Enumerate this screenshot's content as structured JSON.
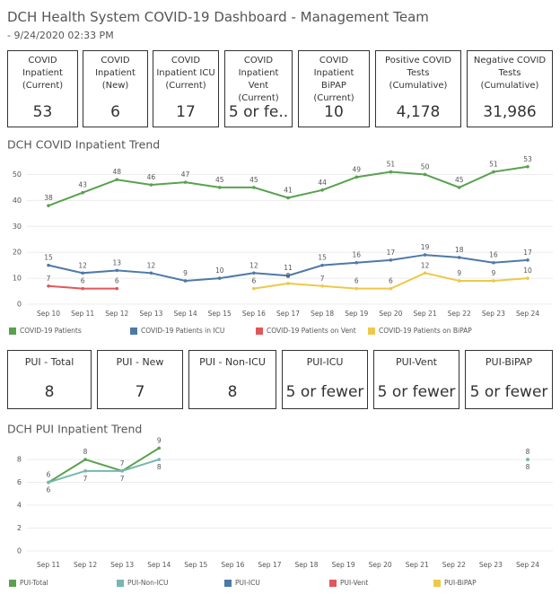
{
  "header": {
    "title": "DCH Health System COVID-19 Dashboard - Management Team",
    "timestamp": " - 9/24/2020 02:33 PM"
  },
  "kpis": [
    {
      "label": "COVID Inpatient (Current)",
      "value": "53"
    },
    {
      "label": "COVID Inpatient (New)",
      "value": "6"
    },
    {
      "label": "COVID Inpatient ICU (Current)",
      "value": "17"
    },
    {
      "label": "COVID Inpatient Vent (Current)",
      "value": "5 or fe.."
    },
    {
      "label": "COVID Inpatient BiPAP (Current)",
      "value": "10"
    },
    {
      "label": "Positive COVID Tests (Cumulative)",
      "value": "4,178"
    },
    {
      "label": "Negative COVID Tests (Cumulative)",
      "value": "31,986"
    }
  ],
  "pui_kpis": [
    {
      "label": "PUI - Total",
      "value": "8"
    },
    {
      "label": "PUI - New",
      "value": "7"
    },
    {
      "label": "PUI - Non-ICU",
      "value": "8"
    },
    {
      "label": "PUI-ICU",
      "value": "5 or fewer"
    },
    {
      "label": "PUI-Vent",
      "value": "5 or fewer"
    },
    {
      "label": "PUI-BiPAP",
      "value": "5 or fewer"
    }
  ],
  "chart_data": [
    {
      "type": "line",
      "title": "DCH COVID Inpatient Trend",
      "categories": [
        "Sep 10",
        "Sep 11",
        "Sep 12",
        "Sep 13",
        "Sep 14",
        "Sep 15",
        "Sep 16",
        "Sep 17",
        "Sep 18",
        "Sep 19",
        "Sep 20",
        "Sep 21",
        "Sep 22",
        "Sep 23",
        "Sep 24"
      ],
      "ylim": [
        0,
        55
      ],
      "yticks": [
        0,
        10,
        20,
        30,
        40,
        50
      ],
      "grid": true,
      "series": [
        {
          "name": "COVID-19 Patients",
          "color": "#59a14f",
          "values": [
            38,
            43,
            48,
            46,
            47,
            45,
            45,
            41,
            44,
            49,
            51,
            50,
            45,
            51,
            53
          ]
        },
        {
          "name": "COVID-19 Patients in ICU",
          "color": "#4e79a7",
          "values": [
            15,
            12,
            13,
            12,
            9,
            10,
            12,
            11,
            15,
            16,
            17,
            19,
            18,
            16,
            17
          ]
        },
        {
          "name": "COVID-19 Patients on Vent",
          "color": "#e15759",
          "values": [
            7,
            6,
            6,
            null,
            null,
            null,
            null,
            null,
            null,
            null,
            null,
            null,
            null,
            null,
            null
          ]
        },
        {
          "name": "COVID-19 Patients on BiPAP",
          "color": "#edc948",
          "values": [
            null,
            null,
            null,
            null,
            null,
            null,
            6,
            8,
            7,
            6,
            6,
            12,
            9,
            9,
            10
          ]
        }
      ]
    },
    {
      "type": "line",
      "title": "DCH PUI Inpatient Trend",
      "categories": [
        "Sep 11",
        "Sep 12",
        "Sep 13",
        "Sep 14",
        "Sep 15",
        "Sep 16",
        "Sep 17",
        "Sep 18",
        "Sep 19",
        "Sep 20",
        "Sep 21",
        "Sep 22",
        "Sep 23",
        "Sep 24"
      ],
      "ylim": [
        0,
        9.5
      ],
      "yticks": [
        0,
        2,
        4,
        6,
        8
      ],
      "grid": true,
      "series": [
        {
          "name": "PUI-Total",
          "color": "#59a14f",
          "values": [
            6,
            8,
            7,
            9,
            null,
            null,
            null,
            null,
            null,
            null,
            null,
            null,
            null,
            8
          ]
        },
        {
          "name": "PUI-Non-ICU",
          "color": "#76b7b2",
          "values": [
            6,
            7,
            7,
            8,
            null,
            null,
            null,
            null,
            null,
            null,
            null,
            null,
            null,
            8
          ]
        },
        {
          "name": "PUI-ICU",
          "color": "#4e79a7",
          "values": [
            null,
            null,
            null,
            null,
            null,
            null,
            null,
            null,
            null,
            null,
            null,
            null,
            null,
            null
          ]
        },
        {
          "name": "PUI-Vent",
          "color": "#e15759",
          "values": [
            null,
            null,
            null,
            null,
            null,
            null,
            null,
            null,
            null,
            null,
            null,
            null,
            null,
            null
          ]
        },
        {
          "name": "PUI-BiPAP",
          "color": "#edc948",
          "values": [
            null,
            null,
            null,
            null,
            null,
            null,
            null,
            null,
            null,
            null,
            null,
            null,
            null,
            null
          ]
        }
      ]
    }
  ]
}
